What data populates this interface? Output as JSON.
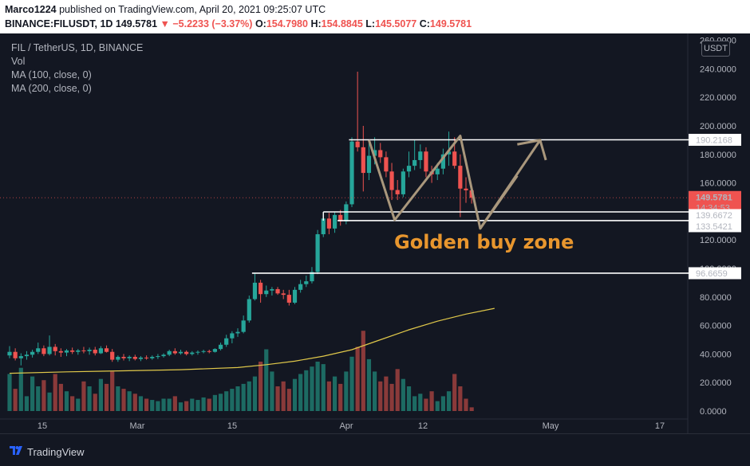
{
  "header": {
    "author": "Marco1224",
    "published_text": "published on TradingView.com, April 20, 2021 09:25:07 UTC",
    "symbol": "BINANCE:FILUSDT, 1D",
    "last_price": "149.5781",
    "change": "▼ −5.2233 (−3.37%)",
    "open_label": "O:",
    "open": "154.7980",
    "high_label": "H:",
    "high": "154.8845",
    "low_label": "L:",
    "low": "145.5077",
    "close_label": "C:",
    "close": "149.5781"
  },
  "legend": {
    "title": "FIL / TetherUS, 1D, BINANCE",
    "vol": "Vol",
    "ma100": "MA (100, close, 0)",
    "ma200": "MA (200, close, 0)"
  },
  "currency": "USDT",
  "annotation": "Golden buy zone",
  "footer": {
    "brand": "TradingView"
  },
  "colors": {
    "up": "#26a69a",
    "down": "#ef5350",
    "ma": "#e0c84a",
    "annotation": "#e8962e",
    "arrow": "#a9977c",
    "background": "#131722"
  },
  "chart_data": {
    "type": "candlestick",
    "x_ticks": [
      "15",
      "Mar",
      "15",
      "Apr",
      "12",
      "May",
      "17"
    ],
    "y_ticks": [
      "0.0000",
      "20.0000",
      "40.0000",
      "60.0000",
      "80.0000",
      "100.0000",
      "120.0000",
      "140.0000",
      "160.0000",
      "180.0000",
      "200.0000",
      "220.0000",
      "240.0000",
      "260.0000"
    ],
    "ylim": [
      0,
      260
    ],
    "price_labels": [
      "190.2168",
      "149.5781",
      "14:34:53",
      "139.6672",
      "133.5421",
      "96.6659"
    ],
    "levels": [
      190.2168,
      139.6672,
      133.5421,
      96.6659
    ],
    "candles": [
      {
        "o": 39.0,
        "h": 45.5,
        "l": 37.0,
        "c": 41.5
      },
      {
        "o": 41.5,
        "h": 44.0,
        "l": 35.5,
        "c": 37.0
      },
      {
        "o": 37.0,
        "h": 40.5,
        "l": 32.0,
        "c": 38.5
      },
      {
        "o": 38.5,
        "h": 42.0,
        "l": 36.0,
        "c": 39.5
      },
      {
        "o": 39.5,
        "h": 43.0,
        "l": 37.5,
        "c": 41.5
      },
      {
        "o": 41.5,
        "h": 48.0,
        "l": 40.0,
        "c": 44.0
      },
      {
        "o": 44.0,
        "h": 46.0,
        "l": 38.5,
        "c": 40.0
      },
      {
        "o": 40.0,
        "h": 53.0,
        "l": 39.0,
        "c": 45.0
      },
      {
        "o": 45.0,
        "h": 47.0,
        "l": 39.0,
        "c": 42.0
      },
      {
        "o": 42.0,
        "h": 44.0,
        "l": 38.0,
        "c": 41.0
      },
      {
        "o": 41.0,
        "h": 43.5,
        "l": 38.5,
        "c": 42.5
      },
      {
        "o": 42.5,
        "h": 44.5,
        "l": 40.0,
        "c": 41.5
      },
      {
        "o": 41.5,
        "h": 43.5,
        "l": 39.5,
        "c": 42.5
      },
      {
        "o": 42.5,
        "h": 45.0,
        "l": 40.5,
        "c": 42.0
      },
      {
        "o": 42.0,
        "h": 44.5,
        "l": 39.5,
        "c": 43.0
      },
      {
        "o": 43.0,
        "h": 45.0,
        "l": 39.0,
        "c": 40.5
      },
      {
        "o": 40.5,
        "h": 45.5,
        "l": 40.0,
        "c": 44.0
      },
      {
        "o": 44.0,
        "h": 46.0,
        "l": 41.0,
        "c": 41.5
      },
      {
        "o": 41.5,
        "h": 43.5,
        "l": 34.5,
        "c": 36.0
      },
      {
        "o": 36.0,
        "h": 39.0,
        "l": 34.5,
        "c": 38.0
      },
      {
        "o": 38.0,
        "h": 40.0,
        "l": 35.5,
        "c": 37.0
      },
      {
        "o": 37.0,
        "h": 39.0,
        "l": 35.0,
        "c": 38.0
      },
      {
        "o": 38.0,
        "h": 39.5,
        "l": 35.5,
        "c": 36.5
      },
      {
        "o": 36.5,
        "h": 38.5,
        "l": 35.0,
        "c": 37.5
      },
      {
        "o": 37.5,
        "h": 39.0,
        "l": 36.0,
        "c": 37.0
      },
      {
        "o": 37.0,
        "h": 39.0,
        "l": 36.0,
        "c": 38.0
      },
      {
        "o": 38.0,
        "h": 40.0,
        "l": 36.5,
        "c": 38.5
      },
      {
        "o": 38.5,
        "h": 40.5,
        "l": 37.5,
        "c": 39.5
      },
      {
        "o": 39.5,
        "h": 43.0,
        "l": 38.5,
        "c": 42.0
      },
      {
        "o": 42.0,
        "h": 44.0,
        "l": 39.5,
        "c": 40.5
      },
      {
        "o": 40.5,
        "h": 43.0,
        "l": 39.5,
        "c": 41.5
      },
      {
        "o": 41.5,
        "h": 42.5,
        "l": 39.0,
        "c": 40.0
      },
      {
        "o": 40.0,
        "h": 42.0,
        "l": 39.0,
        "c": 41.0
      },
      {
        "o": 41.0,
        "h": 42.5,
        "l": 39.5,
        "c": 41.5
      },
      {
        "o": 41.5,
        "h": 43.0,
        "l": 40.5,
        "c": 42.0
      },
      {
        "o": 42.0,
        "h": 43.0,
        "l": 40.5,
        "c": 41.5
      },
      {
        "o": 41.5,
        "h": 44.0,
        "l": 41.0,
        "c": 43.5
      },
      {
        "o": 43.5,
        "h": 48.0,
        "l": 42.5,
        "c": 46.5
      },
      {
        "o": 46.5,
        "h": 53.5,
        "l": 45.0,
        "c": 51.0
      },
      {
        "o": 51.0,
        "h": 56.0,
        "l": 47.5,
        "c": 54.5
      },
      {
        "o": 54.5,
        "h": 58.0,
        "l": 52.0,
        "c": 55.5
      },
      {
        "o": 55.5,
        "h": 67.0,
        "l": 54.5,
        "c": 63.5
      },
      {
        "o": 63.5,
        "h": 81.0,
        "l": 62.0,
        "c": 78.5
      },
      {
        "o": 78.5,
        "h": 97.0,
        "l": 77.5,
        "c": 90.0
      },
      {
        "o": 90.0,
        "h": 92.0,
        "l": 76.0,
        "c": 82.0
      },
      {
        "o": 82.0,
        "h": 88.0,
        "l": 80.0,
        "c": 84.5
      },
      {
        "o": 84.5,
        "h": 87.0,
        "l": 81.0,
        "c": 85.5
      },
      {
        "o": 85.5,
        "h": 87.0,
        "l": 81.5,
        "c": 82.5
      },
      {
        "o": 82.5,
        "h": 85.0,
        "l": 78.5,
        "c": 81.5
      },
      {
        "o": 81.5,
        "h": 85.0,
        "l": 74.0,
        "c": 76.0
      },
      {
        "o": 76.0,
        "h": 87.0,
        "l": 75.0,
        "c": 85.0
      },
      {
        "o": 85.0,
        "h": 92.0,
        "l": 83.0,
        "c": 89.0
      },
      {
        "o": 89.0,
        "h": 95.0,
        "l": 87.0,
        "c": 91.0
      },
      {
        "o": 91.0,
        "h": 101.0,
        "l": 89.5,
        "c": 97.5
      },
      {
        "o": 97.5,
        "h": 127.0,
        "l": 96.0,
        "c": 124.0
      },
      {
        "o": 124.0,
        "h": 139.0,
        "l": 122.0,
        "c": 135.0
      },
      {
        "o": 135.0,
        "h": 139.0,
        "l": 124.0,
        "c": 128.0
      },
      {
        "o": 128.0,
        "h": 139.5,
        "l": 125.0,
        "c": 137.5
      },
      {
        "o": 137.5,
        "h": 141.0,
        "l": 130.0,
        "c": 133.0
      },
      {
        "o": 133.0,
        "h": 147.0,
        "l": 131.0,
        "c": 145.0
      },
      {
        "o": 145.0,
        "h": 192.0,
        "l": 143.0,
        "c": 189.0
      },
      {
        "o": 189.0,
        "h": 238.0,
        "l": 182.0,
        "c": 185.0
      },
      {
        "o": 185.0,
        "h": 200.0,
        "l": 154.0,
        "c": 167.0
      },
      {
        "o": 167.0,
        "h": 188.0,
        "l": 162.0,
        "c": 179.0
      },
      {
        "o": 179.0,
        "h": 192.0,
        "l": 173.0,
        "c": 183.0
      },
      {
        "o": 183.0,
        "h": 188.0,
        "l": 174.0,
        "c": 178.0
      },
      {
        "o": 178.0,
        "h": 182.0,
        "l": 164.0,
        "c": 168.0
      },
      {
        "o": 168.0,
        "h": 174.0,
        "l": 148.0,
        "c": 155.0
      },
      {
        "o": 155.0,
        "h": 162.0,
        "l": 148.0,
        "c": 152.0
      },
      {
        "o": 152.0,
        "h": 170.0,
        "l": 150.0,
        "c": 168.0
      },
      {
        "o": 168.0,
        "h": 182.0,
        "l": 164.0,
        "c": 172.0
      },
      {
        "o": 172.0,
        "h": 190.0,
        "l": 169.0,
        "c": 176.0
      },
      {
        "o": 176.0,
        "h": 187.0,
        "l": 170.0,
        "c": 182.0
      },
      {
        "o": 182.0,
        "h": 185.0,
        "l": 164.0,
        "c": 168.0
      },
      {
        "o": 168.0,
        "h": 172.0,
        "l": 160.0,
        "c": 166.0
      },
      {
        "o": 166.0,
        "h": 174.0,
        "l": 162.0,
        "c": 170.0
      },
      {
        "o": 170.0,
        "h": 184.0,
        "l": 166.0,
        "c": 180.0
      },
      {
        "o": 180.0,
        "h": 196.0,
        "l": 172.0,
        "c": 182.0
      },
      {
        "o": 182.0,
        "h": 192.0,
        "l": 170.0,
        "c": 172.0
      },
      {
        "o": 172.0,
        "h": 180.0,
        "l": 136.0,
        "c": 156.0
      },
      {
        "o": 156.0,
        "h": 164.0,
        "l": 146.0,
        "c": 154.8
      },
      {
        "o": 154.8,
        "h": 154.9,
        "l": 145.5,
        "c": 149.6
      }
    ],
    "volumes": [
      30,
      18,
      35,
      12,
      28,
      20,
      25,
      15,
      30,
      22,
      16,
      12,
      10,
      24,
      20,
      14,
      26,
      22,
      32,
      20,
      18,
      16,
      14,
      12,
      10,
      9,
      8,
      10,
      10,
      12,
      7,
      8,
      10,
      9,
      11,
      10,
      13,
      14,
      16,
      18,
      20,
      22,
      24,
      28,
      40,
      50,
      32,
      20,
      24,
      18,
      26,
      30,
      33,
      36,
      40,
      38,
      24,
      28,
      22,
      32,
      44,
      52,
      65,
      42,
      32,
      24,
      28,
      22,
      34,
      26,
      20,
      12,
      14,
      10,
      16,
      8,
      12,
      16,
      30,
      20,
      10,
      3
    ],
    "ma_line": [
      [
        0,
        26.5
      ],
      [
        10,
        27.5
      ],
      [
        20,
        28.2
      ],
      [
        30,
        29.0
      ],
      [
        40,
        30.5
      ],
      [
        45,
        32.5
      ],
      [
        50,
        35.0
      ],
      [
        55,
        38.5
      ],
      [
        60,
        43.0
      ],
      [
        65,
        50.0
      ],
      [
        70,
        57.0
      ],
      [
        75,
        63.0
      ],
      [
        80,
        68.0
      ],
      [
        85,
        72.0
      ]
    ]
  }
}
